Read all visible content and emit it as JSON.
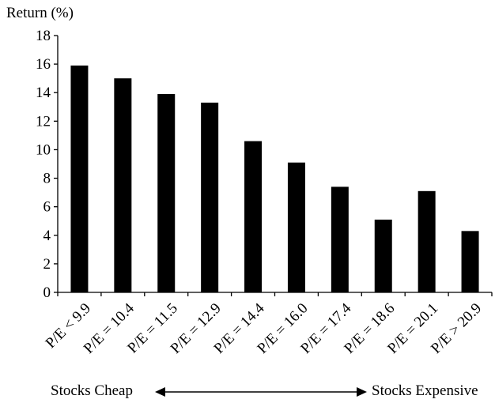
{
  "chart_data": {
    "type": "bar",
    "title": "",
    "xlabel": "",
    "ylabel": "Return (%)",
    "ylim": [
      0,
      18
    ],
    "yticks": [
      0,
      2,
      4,
      6,
      8,
      10,
      12,
      14,
      16,
      18
    ],
    "categories": [
      "P/E < 9.9",
      "P/E = 10.4",
      "P/E = 11.5",
      "P/E = 12.9",
      "P/E = 14.4",
      "P/E = 16.0",
      "P/E = 17.4",
      "P/E = 18.6",
      "P/E = 20.1",
      "P/E > 20.9"
    ],
    "values": [
      15.9,
      15.0,
      13.9,
      13.3,
      10.6,
      9.1,
      7.4,
      5.1,
      7.1,
      4.3
    ],
    "bar_color": "#000000",
    "grid": false,
    "legend": false
  },
  "footer": {
    "left_label": "Stocks Cheap",
    "right_label": "Stocks Expensive"
  }
}
